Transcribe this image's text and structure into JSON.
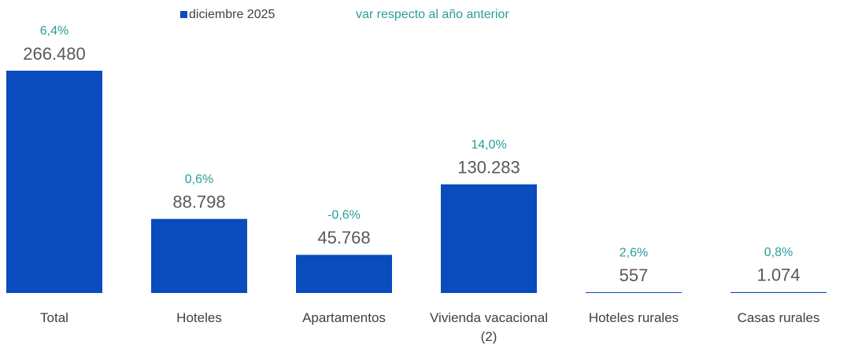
{
  "chart_data": {
    "type": "bar",
    "categories": [
      "Total",
      "Hoteles",
      "Apartamentos",
      "Vivienda vacacional (2)",
      "Hoteles rurales",
      "Casas rurales"
    ],
    "series": [
      {
        "name": "diciembre 2025",
        "color": "#0a4bbd",
        "values": [
          266480,
          88798,
          45768,
          130283,
          557,
          1074
        ],
        "value_labels": [
          "266.480",
          "88.798",
          "45.768",
          "130.283",
          "557",
          "1.074"
        ]
      },
      {
        "name": "var respecto al año anterior",
        "color": "#2a9d9a",
        "values": [
          6.4,
          0.6,
          -0.6,
          14.0,
          2.6,
          0.8
        ],
        "value_labels": [
          "6,4%",
          "0,6%",
          "-0,6%",
          "14,0%",
          "2,6%",
          "0,8%"
        ]
      }
    ]
  }
}
